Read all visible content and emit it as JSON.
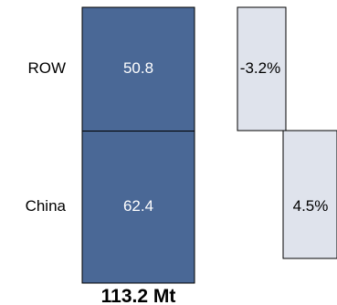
{
  "chart_data": {
    "type": "bar",
    "subtype": "stacked-bar-with-change-panel",
    "categories": [
      "ROW",
      "China"
    ],
    "values": [
      50.8,
      62.4
    ],
    "value_labels": [
      "50.8",
      "62.4"
    ],
    "changes": [
      -3.2,
      4.5
    ],
    "change_labels": [
      "-3.2%",
      "4.5%"
    ],
    "total_label": "113.2 Mt",
    "colors": {
      "bar_fill": "#4a6896",
      "change_fill": "#dfe3ec",
      "stroke": "#000000"
    }
  }
}
